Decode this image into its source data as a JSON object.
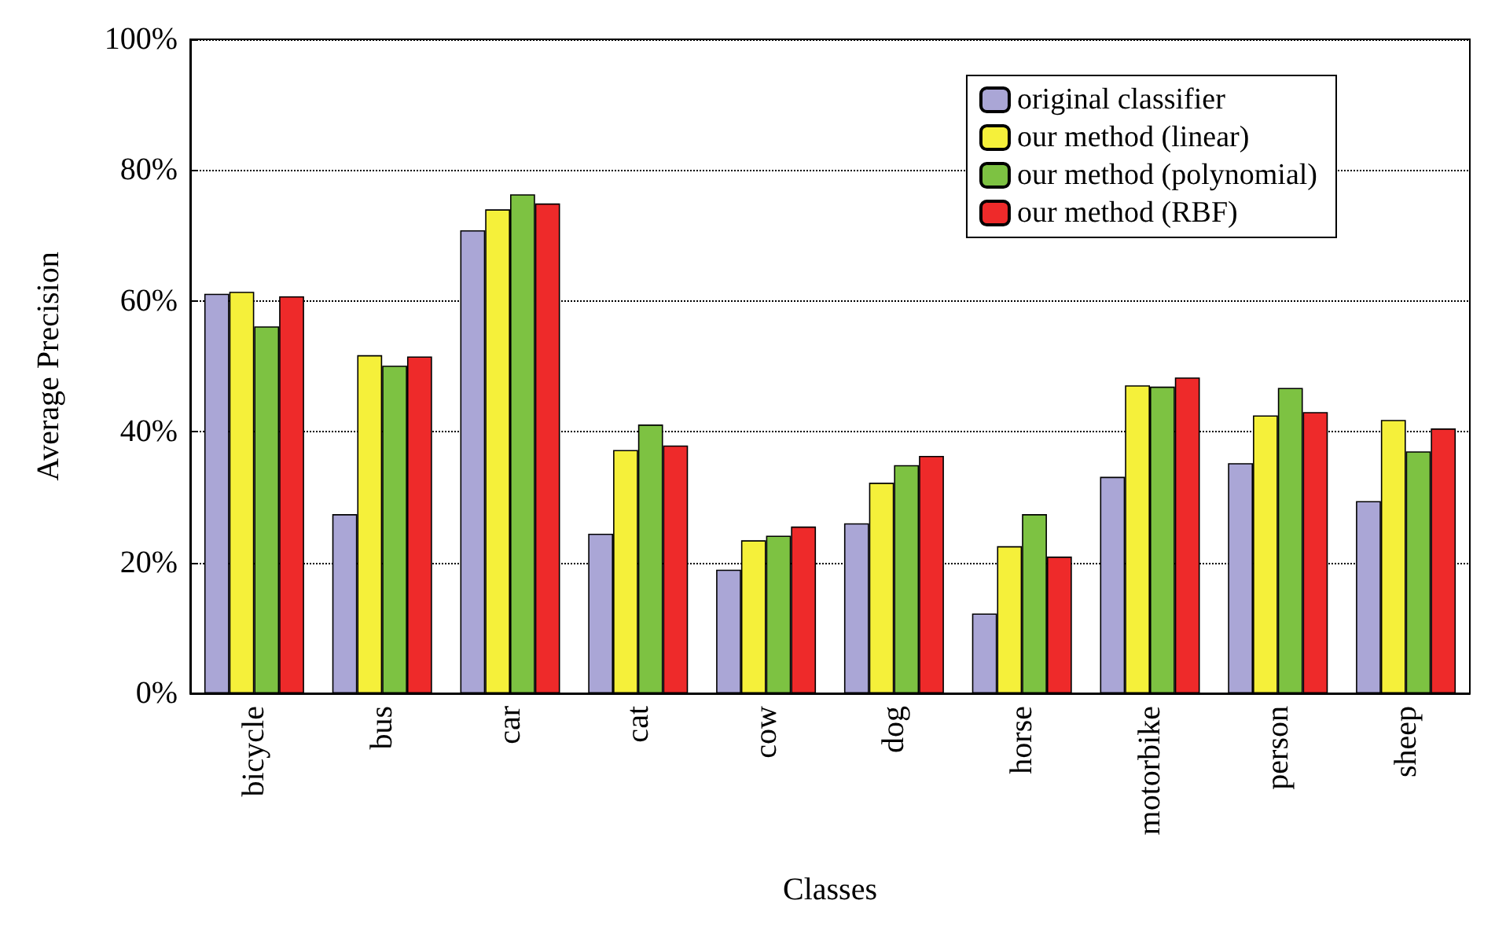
{
  "chart_data": {
    "type": "bar",
    "xlabel": "Classes",
    "ylabel": "Average Precision",
    "categories": [
      "bicycle",
      "bus",
      "car",
      "cat",
      "cow",
      "dog",
      "horse",
      "motorbike",
      "person",
      "sheep"
    ],
    "series": [
      {
        "name": "original classifier",
        "color": "#aaa6d6",
        "values": [
          61.1,
          27.4,
          70.8,
          24.4,
          18.9,
          26.0,
          12.2,
          33.1,
          35.2,
          29.4
        ]
      },
      {
        "name": "our method (linear)",
        "color": "#f5f03a",
        "values": [
          61.4,
          51.7,
          74.0,
          37.2,
          23.4,
          32.2,
          22.5,
          47.1,
          42.5,
          41.8
        ]
      },
      {
        "name": "our method (polynomial)",
        "color": "#7dc242",
        "values": [
          56.1,
          50.1,
          76.3,
          41.1,
          24.1,
          34.9,
          27.4,
          46.9,
          46.7,
          37.0
        ]
      },
      {
        "name": "our method (RBF)",
        "color": "#ee2a2a",
        "values": [
          60.7,
          51.5,
          74.9,
          37.9,
          25.5,
          36.3,
          20.9,
          48.3,
          43.0,
          40.5
        ]
      }
    ],
    "ylim": [
      0,
      100
    ],
    "yticks": [
      {
        "value": 0,
        "label": "0%"
      },
      {
        "value": 20,
        "label": "20%"
      },
      {
        "value": 40,
        "label": "40%"
      },
      {
        "value": 60,
        "label": "60%"
      },
      {
        "value": 80,
        "label": "80%"
      },
      {
        "value": 100,
        "label": "100%"
      }
    ],
    "grid": "y",
    "legend": "top right"
  }
}
